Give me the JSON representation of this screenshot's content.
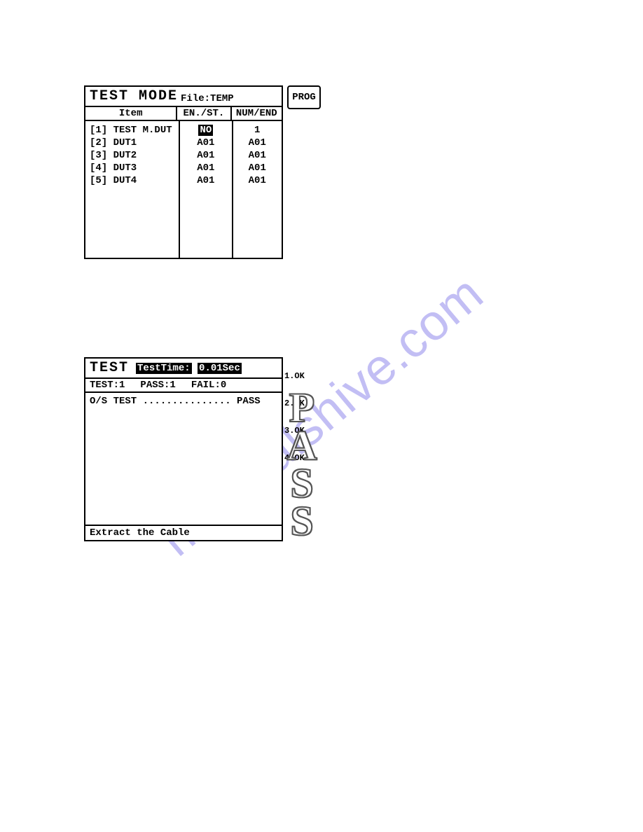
{
  "watermark": {
    "text": "manualshive.com",
    "color": "#8b80e6",
    "opacity": 0.45,
    "fontsize": 72
  },
  "panel1": {
    "title": "TEST  MODE",
    "file_label": "File:",
    "file_name": "TEMP",
    "columns": {
      "item": "Item",
      "enst": "EN./ST.",
      "numend": "NUM/END"
    },
    "rows": [
      {
        "item": "[1] TEST M.DUT",
        "enst": "NO",
        "enst_inverted": true,
        "numend": "1"
      },
      {
        "item": "[2] DUT1",
        "enst": "A01",
        "enst_inverted": false,
        "numend": "A01"
      },
      {
        "item": "[3] DUT2",
        "enst": "A01",
        "enst_inverted": false,
        "numend": "A01"
      },
      {
        "item": "[4] DUT3",
        "enst": "A01",
        "enst_inverted": false,
        "numend": "A01"
      },
      {
        "item": "[5] DUT4",
        "enst": "A01",
        "enst_inverted": false,
        "numend": "A01"
      }
    ],
    "prog_button": "PROG"
  },
  "panel2": {
    "title": "TEST",
    "testtime_label": "TestTime:",
    "testtime_value": "0.01Sec",
    "stats": {
      "test": "TEST:1",
      "pass": "PASS:1",
      "fail": "FAIL:0"
    },
    "body_line": "O/S TEST ............... PASS",
    "footer": "Extract the Cable",
    "ok_list": [
      "1.OK",
      "2.OK",
      "3.OK",
      "4.OK"
    ],
    "pass_letters": [
      "P",
      "A",
      "S",
      "S"
    ]
  },
  "style": {
    "mono_font": "Courier New",
    "border_color": "#000000",
    "bg_color": "#ffffff",
    "highlight_bg": "#000000",
    "highlight_fg": "#ffffff"
  }
}
